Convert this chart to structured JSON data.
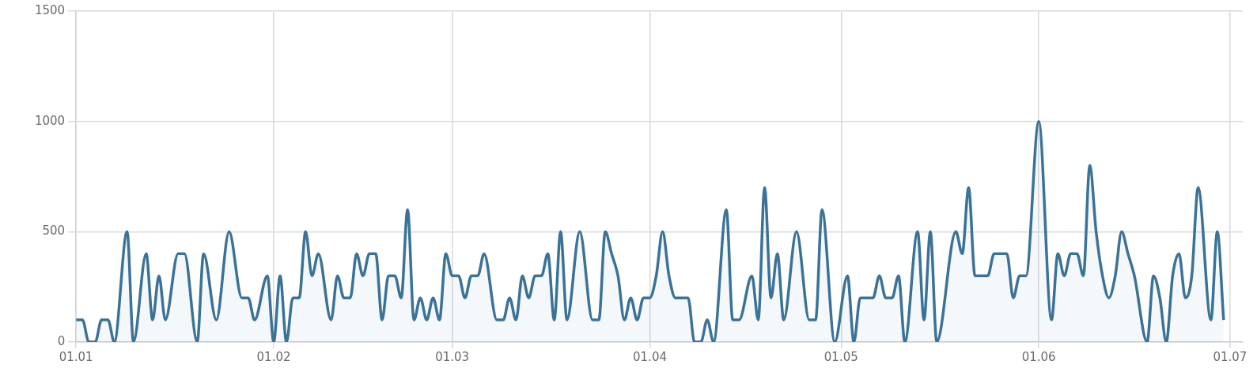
{
  "chart_data": {
    "type": "area",
    "grid": true,
    "xlim": [
      "--01-01",
      "--07-03"
    ],
    "xticks": [
      {
        "value": "--01-01",
        "label": "01.01"
      },
      {
        "value": "--02-01",
        "label": "01.02"
      },
      {
        "value": "--03-01",
        "label": "01.03"
      },
      {
        "value": "--04-01",
        "label": "01.04"
      },
      {
        "value": "--05-01",
        "label": "01.05"
      },
      {
        "value": "--06-01",
        "label": "01.06"
      },
      {
        "value": "--07-01",
        "label": "01.07"
      }
    ],
    "ylim": [
      0,
      1500
    ],
    "yticks": [
      0,
      500,
      1000,
      1500
    ],
    "x": [
      "--01-01",
      "--01-02",
      "--01-03",
      "--01-04",
      "--01-05",
      "--01-06",
      "--01-07",
      "--01-09",
      "--01-10",
      "--01-12",
      "--01-13",
      "--01-14",
      "--01-15",
      "--01-17",
      "--01-18",
      "--01-20",
      "--01-21",
      "--01-23",
      "--01-25",
      "--01-27",
      "--01-28",
      "--01-29",
      "--01-31",
      "--02-01",
      "--02-02",
      "--02-03",
      "--02-04",
      "--02-05",
      "--02-06",
      "--02-07",
      "--02-08",
      "--02-10",
      "--02-11",
      "--02-12",
      "--02-13",
      "--02-14",
      "--02-15",
      "--02-16",
      "--02-17",
      "--02-18",
      "--02-19",
      "--02-20",
      "--02-21",
      "--02-22",
      "--02-23",
      "--02-24",
      "--02-25",
      "--02-26",
      "--02-27",
      "--02-28",
      "--03-01",
      "--03-02",
      "--03-03",
      "--03-04",
      "--03-05",
      "--03-06",
      "--03-08",
      "--03-09",
      "--03-10",
      "--03-11",
      "--03-12",
      "--03-13",
      "--03-14",
      "--03-15",
      "--03-16",
      "--03-17",
      "--03-18",
      "--03-19",
      "--03-21",
      "--03-23",
      "--03-24",
      "--03-25",
      "--03-26",
      "--03-27",
      "--03-28",
      "--03-29",
      "--03-30",
      "--03-31",
      "--04-01",
      "--04-02",
      "--04-03",
      "--04-04",
      "--04-05",
      "--04-06",
      "--04-07",
      "--04-08",
      "--04-09",
      "--04-10",
      "--04-11",
      "--04-13",
      "--04-14",
      "--04-15",
      "--04-17",
      "--04-18",
      "--04-19",
      "--04-20",
      "--04-21",
      "--04-22",
      "--04-24",
      "--04-26",
      "--04-27",
      "--04-28",
      "--04-30",
      "--05-02",
      "--05-03",
      "--05-04",
      "--05-05",
      "--05-06",
      "--05-07",
      "--05-08",
      "--05-09",
      "--05-10",
      "--05-11",
      "--05-13",
      "--05-14",
      "--05-15",
      "--05-16",
      "--05-19",
      "--05-20",
      "--05-21",
      "--05-22",
      "--05-23",
      "--05-24",
      "--05-25",
      "--05-26",
      "--05-27",
      "--05-28",
      "--05-29",
      "--05-30",
      "--06-01",
      "--06-03",
      "--06-04",
      "--06-05",
      "--06-06",
      "--06-07",
      "--06-08",
      "--06-09",
      "--06-10",
      "--06-11",
      "--06-12",
      "--06-13",
      "--06-14",
      "--06-15",
      "--06-16",
      "--06-18",
      "--06-19",
      "--06-20",
      "--06-21",
      "--06-22",
      "--06-23",
      "--06-24",
      "--06-25",
      "--06-26",
      "--06-28",
      "--06-29",
      "--06-30"
    ],
    "series": [
      {
        "color": "#3b7298",
        "values": [
          100,
          100,
          0,
          0,
          100,
          100,
          0,
          500,
          0,
          400,
          100,
          300,
          100,
          400,
          400,
          0,
          400,
          100,
          500,
          200,
          200,
          100,
          300,
          0,
          300,
          0,
          200,
          200,
          500,
          300,
          400,
          100,
          300,
          200,
          200,
          400,
          300,
          400,
          400,
          100,
          300,
          300,
          200,
          600,
          100,
          200,
          100,
          200,
          100,
          400,
          300,
          300,
          200,
          300,
          300,
          400,
          100,
          100,
          200,
          100,
          300,
          200,
          300,
          300,
          400,
          100,
          500,
          100,
          500,
          100,
          100,
          500,
          400,
          300,
          100,
          200,
          100,
          200,
          200,
          300,
          500,
          300,
          200,
          200,
          200,
          0,
          0,
          100,
          0,
          600,
          100,
          100,
          300,
          100,
          700,
          200,
          400,
          100,
          500,
          100,
          100,
          600,
          0,
          300,
          0,
          200,
          200,
          200,
          300,
          200,
          200,
          300,
          0,
          500,
          100,
          500,
          0,
          500,
          400,
          700,
          300,
          300,
          300,
          400,
          400,
          400,
          200,
          300,
          300,
          1000,
          100,
          400,
          300,
          400,
          400,
          300,
          800,
          500,
          300,
          200,
          300,
          500,
          400,
          300,
          0,
          300,
          200,
          0,
          300,
          400,
          200,
          300,
          700,
          100,
          500,
          100
        ]
      }
    ]
  }
}
